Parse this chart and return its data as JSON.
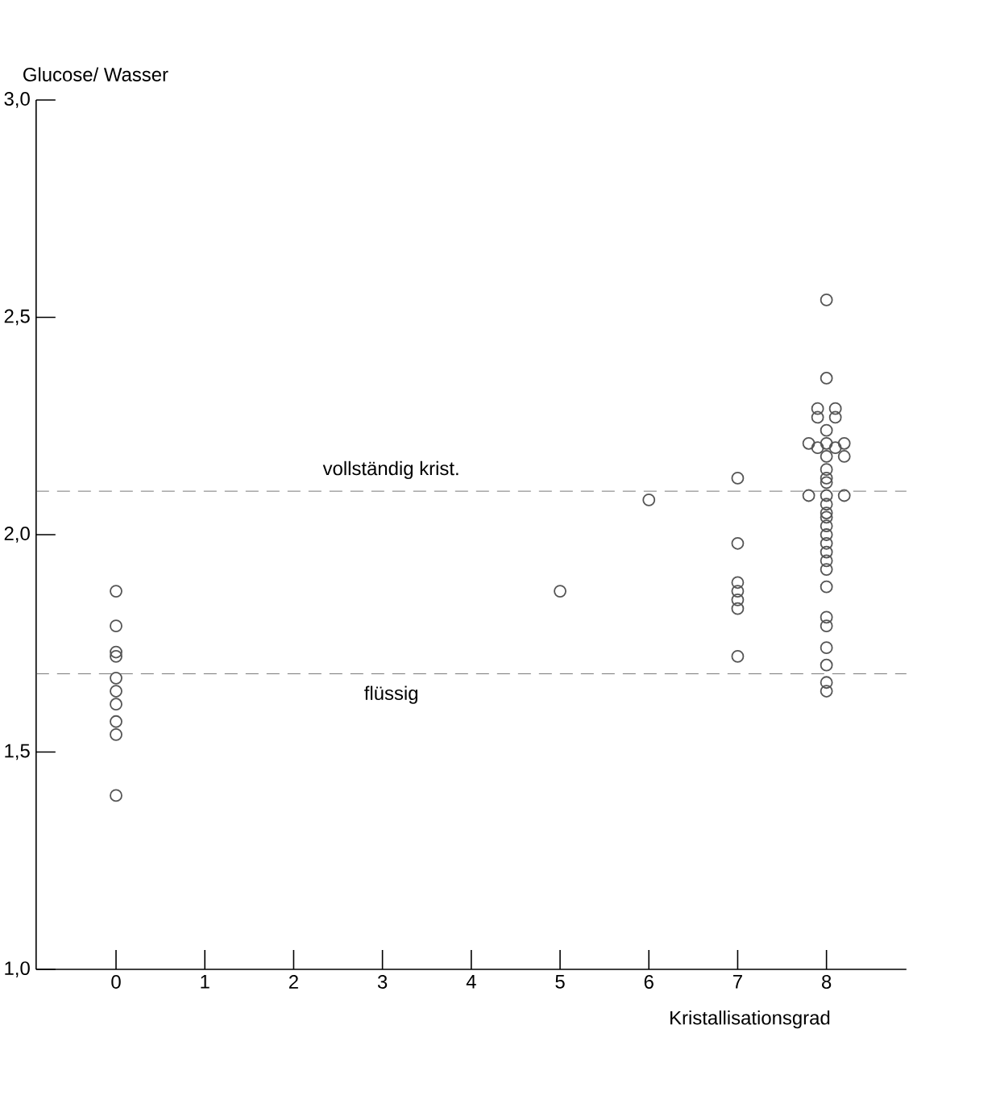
{
  "chart_data": {
    "type": "scatter",
    "xlabel": "Kristallisationsgrad",
    "ylabel": "Glucose/ Wasser",
    "x": [
      0,
      0,
      0,
      0,
      0,
      0,
      0,
      0,
      0,
      0,
      5,
      6,
      7,
      7,
      7,
      7,
      7,
      7,
      7,
      8,
      8,
      7.9,
      8.1,
      7.9,
      8.1,
      8,
      7.8,
      8,
      8.2,
      7.9,
      8.1,
      8,
      8.2,
      8,
      8,
      8,
      7.8,
      8,
      8.2,
      8,
      8,
      8,
      8,
      8,
      8,
      8,
      8,
      8,
      8,
      8,
      8,
      8,
      8,
      8,
      8
    ],
    "values": [
      1.87,
      1.79,
      1.73,
      1.72,
      1.67,
      1.64,
      1.61,
      1.57,
      1.54,
      1.4,
      1.87,
      2.08,
      2.13,
      1.98,
      1.89,
      1.87,
      1.85,
      1.83,
      1.72,
      2.54,
      2.36,
      2.29,
      2.29,
      2.27,
      2.27,
      2.24,
      2.21,
      2.21,
      2.21,
      2.2,
      2.2,
      2.18,
      2.18,
      2.15,
      2.13,
      2.12,
      2.09,
      2.09,
      2.09,
      2.07,
      2.05,
      2.04,
      2.02,
      2.0,
      1.98,
      1.96,
      1.94,
      1.92,
      1.88,
      1.81,
      1.79,
      1.74,
      1.7,
      1.66,
      1.64
    ],
    "color": "#555555",
    "marker": "circle",
    "xlim": [
      -0.9,
      8.9
    ],
    "xticks": [
      0,
      1,
      2,
      3,
      4,
      5,
      6,
      7,
      8
    ],
    "ylim": [
      1,
      3
    ],
    "yticks": [
      {
        "value": 1,
        "label": "1,0"
      },
      {
        "value": 1.5,
        "label": "1,5"
      },
      {
        "value": 2,
        "label": "2,0"
      },
      {
        "value": 2.5,
        "label": "2,5"
      },
      {
        "value": 3,
        "label": "3,0"
      }
    ],
    "ref_lines": [
      {
        "axis": "y",
        "value": 2.1,
        "label": "vollständig krist.",
        "color": "#555555",
        "line_style": "dashed"
      },
      {
        "axis": "y",
        "value": 1.68,
        "label": "flüssig",
        "color": "#555555",
        "line_style": "dashed"
      }
    ]
  }
}
